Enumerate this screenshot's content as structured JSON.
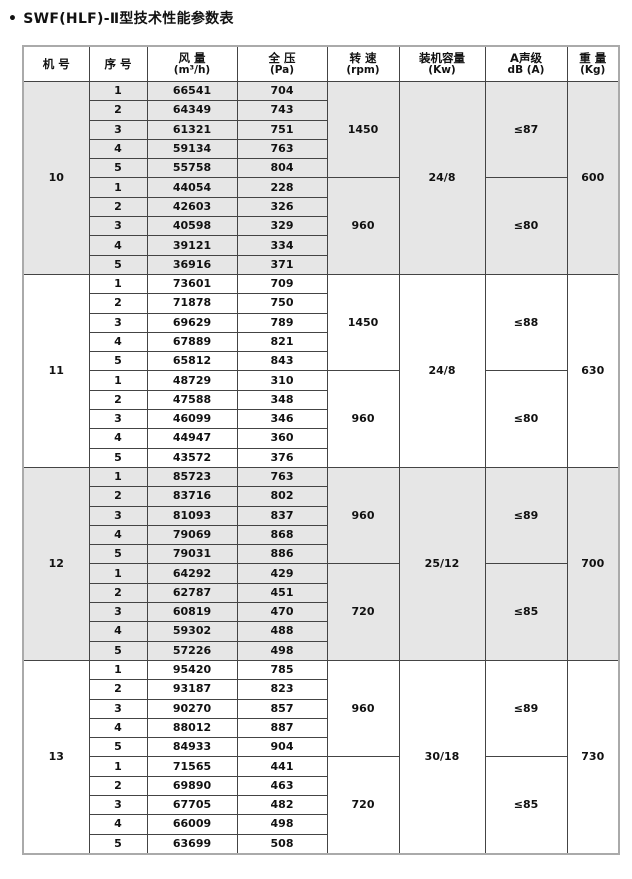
{
  "title": {
    "bullet": "•",
    "text": "SWF(HLF)-Ⅱ型技术性能参数表"
  },
  "headers": [
    {
      "label": "机 号",
      "unit": ""
    },
    {
      "label": "序 号",
      "unit": ""
    },
    {
      "label": "风  量",
      "unit": "(m³/h)"
    },
    {
      "label": "全  压",
      "unit": "(Pa)"
    },
    {
      "label": "转  速",
      "unit": "(rpm)"
    },
    {
      "label": "装机容量",
      "unit": "(Kw)"
    },
    {
      "label": "A声级",
      "unit": "dB (A)"
    },
    {
      "label": "重 量",
      "unit": "(Kg)"
    }
  ],
  "shade_color": "#e6e6e6",
  "models": [
    {
      "model": "10",
      "power": "24/8",
      "weight": "600",
      "shaded": true,
      "speeds": [
        {
          "rpm": "1450",
          "noise": "≤87",
          "rows": [
            [
              "1",
              "66541",
              "704"
            ],
            [
              "2",
              "64349",
              "743"
            ],
            [
              "3",
              "61321",
              "751"
            ],
            [
              "4",
              "59134",
              "763"
            ],
            [
              "5",
              "55758",
              "804"
            ]
          ]
        },
        {
          "rpm": "960",
          "noise": "≤80",
          "rows": [
            [
              "1",
              "44054",
              "228"
            ],
            [
              "2",
              "42603",
              "326"
            ],
            [
              "3",
              "40598",
              "329"
            ],
            [
              "4",
              "39121",
              "334"
            ],
            [
              "5",
              "36916",
              "371"
            ]
          ]
        }
      ]
    },
    {
      "model": "11",
      "power": "24/8",
      "weight": "630",
      "shaded": false,
      "speeds": [
        {
          "rpm": "1450",
          "noise": "≤88",
          "rows": [
            [
              "1",
              "73601",
              "709"
            ],
            [
              "2",
              "71878",
              "750"
            ],
            [
              "3",
              "69629",
              "789"
            ],
            [
              "4",
              "67889",
              "821"
            ],
            [
              "5",
              "65812",
              "843"
            ]
          ]
        },
        {
          "rpm": "960",
          "noise": "≤80",
          "rows": [
            [
              "1",
              "48729",
              "310"
            ],
            [
              "2",
              "47588",
              "348"
            ],
            [
              "3",
              "46099",
              "346"
            ],
            [
              "4",
              "44947",
              "360"
            ],
            [
              "5",
              "43572",
              "376"
            ]
          ]
        }
      ]
    },
    {
      "model": "12",
      "power": "25/12",
      "weight": "700",
      "shaded": true,
      "speeds": [
        {
          "rpm": "960",
          "noise": "≤89",
          "rows": [
            [
              "1",
              "85723",
              "763"
            ],
            [
              "2",
              "83716",
              "802"
            ],
            [
              "3",
              "81093",
              "837"
            ],
            [
              "4",
              "79069",
              "868"
            ],
            [
              "5",
              "79031",
              "886"
            ]
          ]
        },
        {
          "rpm": "720",
          "noise": "≤85",
          "rows": [
            [
              "1",
              "64292",
              "429"
            ],
            [
              "2",
              "62787",
              "451"
            ],
            [
              "3",
              "60819",
              "470"
            ],
            [
              "4",
              "59302",
              "488"
            ],
            [
              "5",
              "57226",
              "498"
            ]
          ]
        }
      ]
    },
    {
      "model": "13",
      "power": "30/18",
      "weight": "730",
      "shaded": false,
      "speeds": [
        {
          "rpm": "960",
          "noise": "≤89",
          "rows": [
            [
              "1",
              "95420",
              "785"
            ],
            [
              "2",
              "93187",
              "823"
            ],
            [
              "3",
              "90270",
              "857"
            ],
            [
              "4",
              "88012",
              "887"
            ],
            [
              "5",
              "84933",
              "904"
            ]
          ]
        },
        {
          "rpm": "720",
          "noise": "≤85",
          "rows": [
            [
              "1",
              "71565",
              "441"
            ],
            [
              "2",
              "69890",
              "463"
            ],
            [
              "3",
              "67705",
              "482"
            ],
            [
              "4",
              "66009",
              "498"
            ],
            [
              "5",
              "63699",
              "508"
            ]
          ]
        }
      ]
    }
  ]
}
